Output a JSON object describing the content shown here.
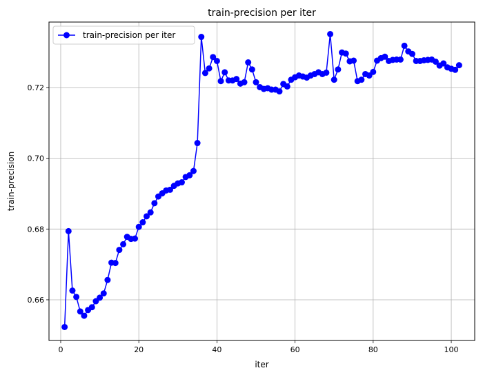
{
  "chart_data": {
    "type": "line",
    "title": "train-precision per iter",
    "xlabel": "iter",
    "ylabel": "train-precision",
    "xlim": [
      -3,
      106
    ],
    "ylim": [
      0.6485,
      0.7385
    ],
    "xticks": [
      0,
      20,
      40,
      60,
      80,
      100
    ],
    "yticks": [
      0.66,
      0.68,
      0.7,
      0.72
    ],
    "ytick_labels": [
      "0.66",
      "0.68",
      "0.70",
      "0.72"
    ],
    "grid": true,
    "legend_position": "top-left",
    "series": [
      {
        "name": "train-precision per iter",
        "color": "#0000ff",
        "marker": "circle",
        "x": [
          1,
          2,
          3,
          4,
          5,
          6,
          7,
          8,
          9,
          10,
          11,
          12,
          13,
          14,
          15,
          16,
          17,
          18,
          19,
          20,
          21,
          22,
          23,
          24,
          25,
          26,
          27,
          28,
          29,
          30,
          31,
          32,
          33,
          34,
          35,
          36,
          37,
          38,
          39,
          40,
          41,
          42,
          43,
          44,
          45,
          46,
          47,
          48,
          49,
          50,
          51,
          52,
          53,
          54,
          55,
          56,
          57,
          58,
          59,
          60,
          61,
          62,
          63,
          64,
          65,
          66,
          67,
          68,
          69,
          70,
          71,
          72,
          73,
          74,
          75,
          76,
          77,
          78,
          79,
          80,
          81,
          82,
          83,
          84,
          85,
          86,
          87,
          88,
          89,
          90,
          91,
          92,
          93,
          94,
          95,
          96,
          97,
          98,
          99,
          100,
          101,
          102
        ],
        "values": [
          0.6523,
          0.6794,
          0.6626,
          0.6608,
          0.6567,
          0.6555,
          0.6571,
          0.6579,
          0.6596,
          0.6606,
          0.6618,
          0.6656,
          0.6705,
          0.6704,
          0.6741,
          0.6757,
          0.6778,
          0.6772,
          0.6773,
          0.6806,
          0.6819,
          0.6836,
          0.6847,
          0.6873,
          0.6892,
          0.6901,
          0.6909,
          0.6911,
          0.6922,
          0.6929,
          0.6932,
          0.6947,
          0.6952,
          0.6964,
          0.7043,
          0.7343,
          0.7241,
          0.7254,
          0.7286,
          0.7275,
          0.7218,
          0.7243,
          0.722,
          0.722,
          0.7224,
          0.7211,
          0.7215,
          0.7271,
          0.7251,
          0.7215,
          0.7201,
          0.7196,
          0.7198,
          0.7194,
          0.7194,
          0.7189,
          0.721,
          0.7203,
          0.7222,
          0.7229,
          0.7234,
          0.7231,
          0.7228,
          0.7234,
          0.7238,
          0.7243,
          0.7238,
          0.7242,
          0.7351,
          0.7222,
          0.7251,
          0.7299,
          0.7296,
          0.7274,
          0.7276,
          0.7218,
          0.7222,
          0.7238,
          0.7234,
          0.7244,
          0.7276,
          0.7283,
          0.7287,
          0.7275,
          0.7278,
          0.7279,
          0.7279,
          0.7318,
          0.7302,
          0.7295,
          0.7275,
          0.7275,
          0.7277,
          0.7278,
          0.7279,
          0.7273,
          0.7262,
          0.7268,
          0.7257,
          0.7253,
          0.725,
          0.7263
        ]
      }
    ]
  }
}
